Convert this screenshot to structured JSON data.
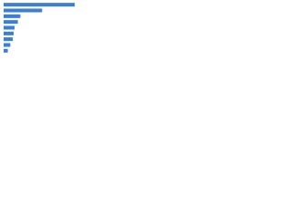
{
  "chart_data": {
    "type": "bar",
    "orientation": "horizontal",
    "categories": [
      null,
      null,
      null,
      null,
      null,
      null,
      null,
      null,
      null
    ],
    "values": [
      85,
      46,
      20,
      17,
      13,
      12,
      11,
      8,
      5
    ],
    "color": "#3a7fd5",
    "xlim": [
      0,
      100
    ],
    "grid": false
  }
}
